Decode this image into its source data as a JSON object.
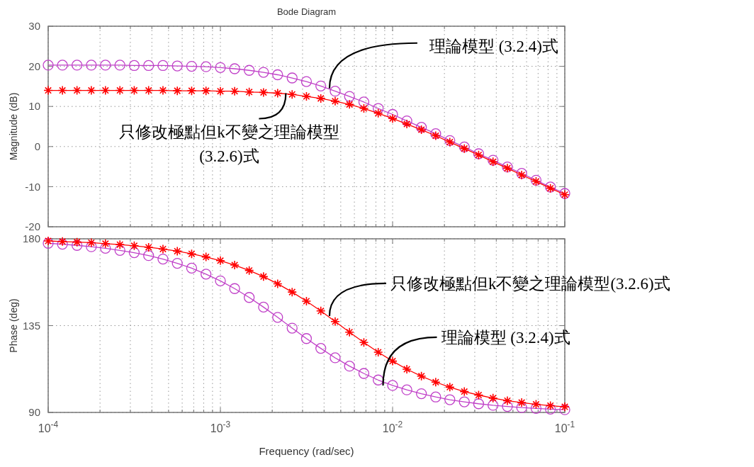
{
  "chart_data": [
    {
      "type": "line",
      "title": "Bode Diagram",
      "ylabel": "Magnitude (dB)",
      "log": "x",
      "grid": true,
      "tick_labels": "y",
      "xlim": [
        0.0001,
        0.1
      ],
      "xticks": [
        {
          "value": 0.0001,
          "label": null
        },
        {
          "value": 0.0002,
          "label": null
        },
        {
          "value": 0.0003,
          "label": null
        },
        {
          "value": 0.0004,
          "label": null
        },
        {
          "value": 0.0005,
          "label": null
        },
        {
          "value": 0.0006,
          "label": null
        },
        {
          "value": 0.0007,
          "label": null
        },
        {
          "value": 0.0008,
          "label": null
        },
        {
          "value": 0.0009,
          "label": null
        },
        {
          "value": 0.001,
          "label": null
        },
        {
          "value": 0.002,
          "label": null
        },
        {
          "value": 0.003,
          "label": null
        },
        {
          "value": 0.004,
          "label": null
        },
        {
          "value": 0.005,
          "label": null
        },
        {
          "value": 0.006,
          "label": null
        },
        {
          "value": 0.007,
          "label": null
        },
        {
          "value": 0.008,
          "label": null
        },
        {
          "value": 0.009,
          "label": null
        },
        {
          "value": 0.01,
          "label": null
        },
        {
          "value": 0.02,
          "label": null
        },
        {
          "value": 0.03,
          "label": null
        },
        {
          "value": 0.04,
          "label": null
        },
        {
          "value": 0.05,
          "label": null
        },
        {
          "value": 0.06,
          "label": null
        },
        {
          "value": 0.07,
          "label": null
        },
        {
          "value": 0.08,
          "label": null
        },
        {
          "value": 0.09,
          "label": null
        },
        {
          "value": 0.1,
          "label": null
        }
      ],
      "ylim": [
        -20,
        30
      ],
      "yticks": [
        -20,
        -10,
        0,
        10,
        20,
        30
      ],
      "x": [
        0.0001,
        0.000121,
        0.000147,
        0.000178,
        0.000215,
        0.000261,
        0.000316,
        0.000383,
        0.000464,
        0.000562,
        0.000681,
        0.000825,
        0.001,
        0.00121,
        0.00147,
        0.00178,
        0.00215,
        0.00261,
        0.00316,
        0.00383,
        0.00464,
        0.00562,
        0.00681,
        0.00825,
        0.01,
        0.0121,
        0.0147,
        0.0178,
        0.0215,
        0.0261,
        0.0316,
        0.0383,
        0.0464,
        0.0562,
        0.0681,
        0.0825,
        0.1
      ],
      "series": [
        {
          "color": "#c040c8",
          "marker": "circle",
          "values": [
            20.3,
            20.3,
            20.3,
            20.3,
            20.3,
            20.3,
            20.2,
            20.2,
            20.2,
            20.1,
            20.0,
            19.9,
            19.7,
            19.4,
            19.0,
            18.5,
            17.9,
            17.1,
            16.2,
            15.1,
            13.8,
            12.5,
            11.1,
            9.5,
            8.0,
            6.4,
            4.8,
            3.2,
            1.5,
            -0.1,
            -1.8,
            -3.4,
            -5.1,
            -6.7,
            -8.4,
            -10.1,
            -11.7
          ]
        },
        {
          "color": "#ff0000",
          "marker": "cross",
          "values": [
            14.0,
            14.0,
            14.0,
            14.0,
            14.0,
            14.0,
            14.0,
            14.0,
            14.0,
            13.9,
            13.9,
            13.9,
            13.8,
            13.8,
            13.6,
            13.5,
            13.3,
            13.0,
            12.5,
            12.0,
            11.3,
            10.5,
            9.5,
            8.3,
            7.0,
            5.6,
            4.2,
            2.7,
            1.1,
            -0.5,
            -2.1,
            -3.8,
            -5.4,
            -7.1,
            -8.7,
            -10.4,
            -12.0
          ]
        }
      ],
      "annotations": [
        {
          "text": "理論模型 (3.2.4)式",
          "x": 0.0043,
          "y": 14.5
        },
        {
          "text": "只修改極點但k不變之理論模型\n(3.2.6)式",
          "x": 0.0024,
          "y": 13.3
        }
      ]
    },
    {
      "type": "line",
      "ylabel": "Phase (deg)",
      "xlabel": "Frequency  (rad/sec)",
      "log": "x",
      "grid": true,
      "xlim": [
        0.0001,
        0.1
      ],
      "xticks": [
        {
          "value": 0.0001,
          "label": "10$^{-4}$"
        },
        {
          "value": 0.0002,
          "label": null
        },
        {
          "value": 0.0003,
          "label": null
        },
        {
          "value": 0.0004,
          "label": null
        },
        {
          "value": 0.0005,
          "label": null
        },
        {
          "value": 0.0006,
          "label": null
        },
        {
          "value": 0.0007,
          "label": null
        },
        {
          "value": 0.0008,
          "label": null
        },
        {
          "value": 0.0009,
          "label": null
        },
        {
          "value": 0.001,
          "label": "10$^{-3}$"
        },
        {
          "value": 0.002,
          "label": null
        },
        {
          "value": 0.003,
          "label": null
        },
        {
          "value": 0.004,
          "label": null
        },
        {
          "value": 0.005,
          "label": null
        },
        {
          "value": 0.006,
          "label": null
        },
        {
          "value": 0.007,
          "label": null
        },
        {
          "value": 0.008,
          "label": null
        },
        {
          "value": 0.009,
          "label": null
        },
        {
          "value": 0.01,
          "label": "10$^{-2}$"
        },
        {
          "value": 0.02,
          "label": null
        },
        {
          "value": 0.03,
          "label": null
        },
        {
          "value": 0.04,
          "label": null
        },
        {
          "value": 0.05,
          "label": null
        },
        {
          "value": 0.06,
          "label": null
        },
        {
          "value": 0.07,
          "label": null
        },
        {
          "value": 0.08,
          "label": null
        },
        {
          "value": 0.09,
          "label": null
        },
        {
          "value": 0.1,
          "label": "10$^{-1}$"
        }
      ],
      "ylim": [
        90,
        180
      ],
      "yticks": [
        90,
        135,
        180
      ],
      "x": [
        0.0001,
        0.000121,
        0.000147,
        0.000178,
        0.000215,
        0.000261,
        0.000316,
        0.000383,
        0.000464,
        0.000562,
        0.000681,
        0.000825,
        0.001,
        0.00121,
        0.00147,
        0.00178,
        0.00215,
        0.00261,
        0.00316,
        0.00383,
        0.00464,
        0.00562,
        0.00681,
        0.00825,
        0.01,
        0.0121,
        0.0147,
        0.0178,
        0.0215,
        0.0261,
        0.0316,
        0.0383,
        0.0464,
        0.0562,
        0.0681,
        0.0825,
        0.1
      ],
      "series": [
        {
          "color": "#c040c8",
          "marker": "circle",
          "values": [
            177.7,
            177.2,
            176.6,
            175.9,
            175.1,
            174.0,
            172.8,
            171.3,
            169.5,
            167.3,
            164.8,
            161.7,
            158.2,
            154.2,
            149.6,
            144.6,
            139.3,
            133.7,
            128.3,
            123.2,
            118.3,
            114.0,
            110.2,
            106.8,
            104.0,
            101.7,
            99.7,
            98.0,
            96.6,
            95.5,
            94.5,
            93.7,
            93.1,
            92.5,
            92.1,
            91.7,
            91.4
          ]
        },
        {
          "color": "#ff0000",
          "marker": "cross",
          "values": [
            178.9,
            178.6,
            178.3,
            178.0,
            177.5,
            177.0,
            176.4,
            175.6,
            174.7,
            173.6,
            172.2,
            170.6,
            168.7,
            166.4,
            163.6,
            160.4,
            156.7,
            152.4,
            147.7,
            142.6,
            137.1,
            131.6,
            126.3,
            121.2,
            116.6,
            112.4,
            108.8,
            105.7,
            103.1,
            100.8,
            99.0,
            97.4,
            96.1,
            95.1,
            94.2,
            93.5,
            92.9
          ]
        }
      ],
      "annotations": [
        {
          "text": "只修改極點但k不變之理論模型(3.2.6)式",
          "x": 0.0043,
          "y": 140
        },
        {
          "text": "理論模型 (3.2.4)式",
          "x": 0.0088,
          "y": 104
        }
      ]
    }
  ]
}
